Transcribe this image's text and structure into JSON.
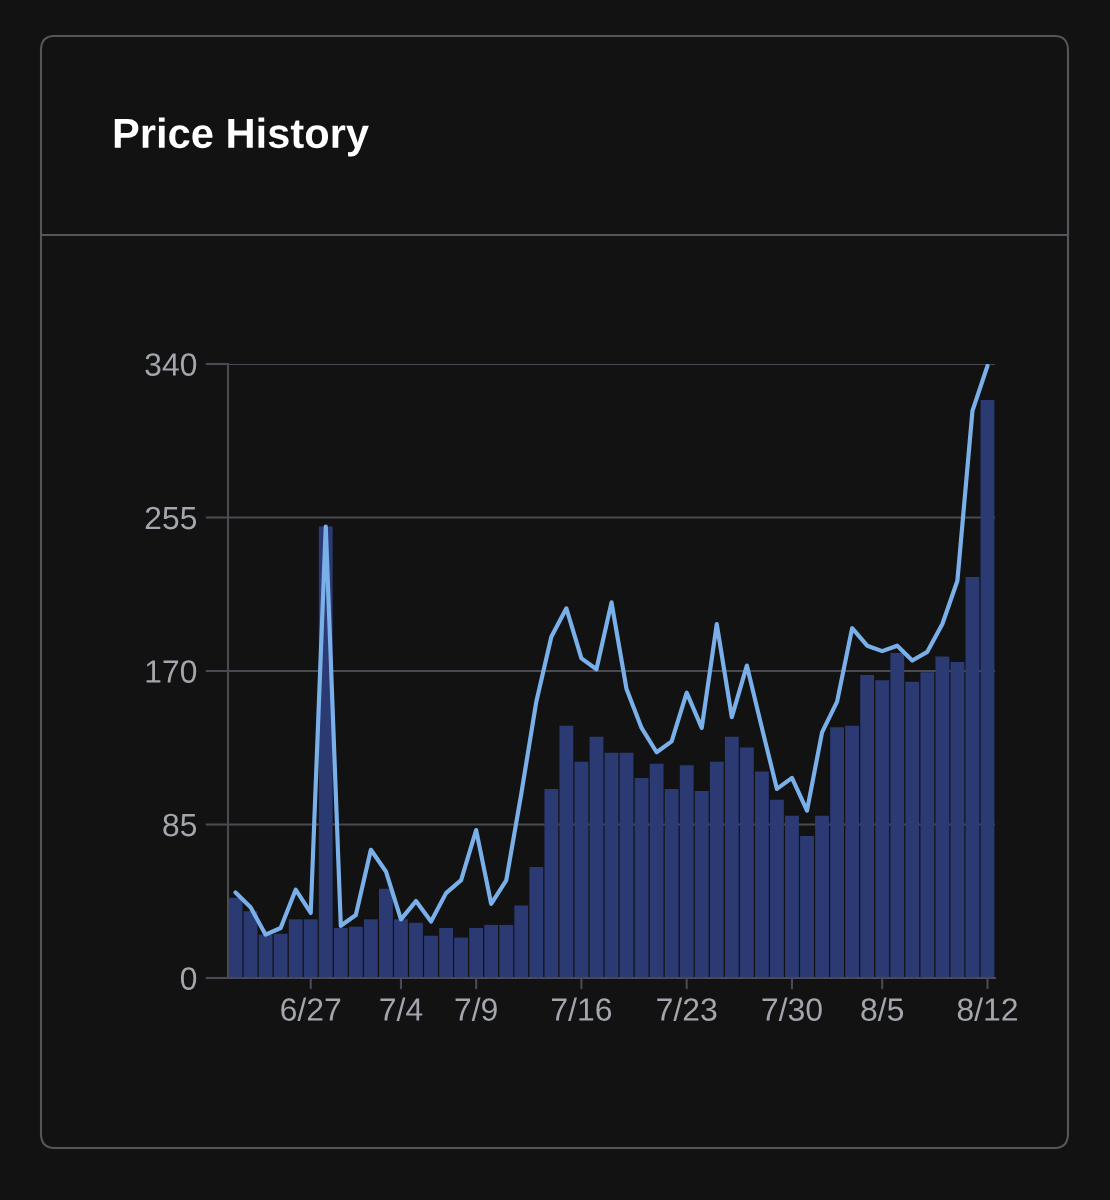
{
  "chart_data": {
    "type": "bar",
    "title": "Price History",
    "categories": [
      null,
      null,
      null,
      null,
      null,
      "6/27",
      null,
      null,
      null,
      null,
      null,
      "7/4",
      null,
      null,
      null,
      null,
      "7/9",
      null,
      null,
      null,
      null,
      null,
      null,
      "7/16",
      null,
      null,
      null,
      null,
      null,
      null,
      "7/23",
      null,
      null,
      null,
      null,
      null,
      null,
      "7/30",
      null,
      null,
      null,
      null,
      null,
      "8/5",
      null,
      null,
      null,
      null,
      null,
      null,
      "8/12"
    ],
    "series": [
      {
        "color": "#2b3a73",
        "values": [
          44.5,
          37,
          24,
          24.5,
          32.5,
          32.5,
          250,
          27.7,
          28.4,
          32.5,
          49.4,
          32.5,
          30.6,
          23.4,
          27.7,
          22.4,
          27.7,
          29.4,
          29.4,
          40.2,
          61.4,
          104.7,
          139.7,
          119.7,
          133.6,
          124.7,
          124.7,
          110.8,
          118.7,
          104.7,
          117.8,
          103.5,
          119.7,
          133.6,
          127.6,
          114.4,
          98.7,
          89.8,
          78.7,
          89.8,
          138.9,
          139.7,
          167.8,
          164.9,
          179.9,
          164,
          169.3,
          178,
          175,
          222,
          320
        ]
      },
      {
        "type": "line",
        "color": "#7ab0ea",
        "values": [
          47.4,
          39.2,
          24,
          27.7,
          48.9,
          36,
          250,
          28.9,
          34.9,
          71,
          59,
          32.5,
          42.6,
          31.3,
          47,
          54.2,
          81.9,
          41,
          54,
          102,
          153,
          189,
          204.7,
          177,
          171,
          208,
          160,
          138.5,
          125,
          131,
          158,
          138.5,
          196,
          144.5,
          173,
          138.5,
          104.7,
          110.8,
          92.7,
          136,
          153,
          193.7,
          184,
          181,
          184,
          175.8,
          180.6,
          196,
          220,
          314,
          339
        ]
      }
    ],
    "ylim": [
      0,
      340
    ],
    "yticks": [
      0,
      85,
      170,
      255,
      340
    ],
    "grid": "y"
  }
}
